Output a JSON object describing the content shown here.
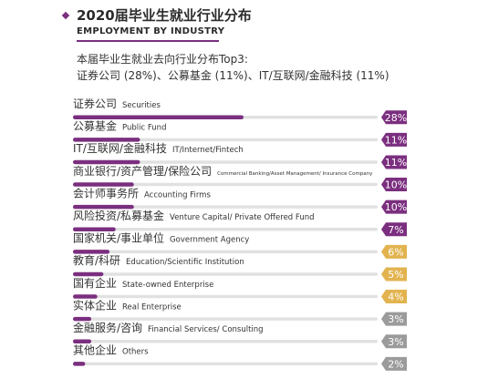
{
  "header": {
    "title": "2020届毕业生就业行业分布",
    "subtitle": "EMPLOYMENT BY INDUSTRY",
    "summary_line1": "本届毕业生就业去向行业分布Top3:",
    "summary_line2": "证券公司 (28%)、公募基金 (11%)、IT/互联网/金融科技 (11%)"
  },
  "colors": {
    "accent": "#7b2f7f",
    "track": "#e1e1e1",
    "badge_purple": "#7b2f7f",
    "badge_gold": "#e2b34f",
    "badge_grey": "#9b9b9b"
  },
  "chart_data": {
    "type": "bar",
    "title": "2020届毕业生就业行业分布",
    "orientation": "horizontal",
    "unit": "%",
    "xlim": [
      0,
      28
    ],
    "categories": [
      {
        "cn": "证券公司",
        "en": "Securities",
        "value": 28,
        "label": "28%",
        "badge": "purple"
      },
      {
        "cn": "公募基金",
        "en": "Public Fund",
        "value": 11,
        "label": "11%",
        "badge": "purple"
      },
      {
        "cn": "IT/互联网/金融科技",
        "en": "IT/Internet/Fintech",
        "value": 11,
        "label": "11%",
        "badge": "purple"
      },
      {
        "cn": "商业银行/资产管理/保险公司",
        "en": "Commercial Banking/Asset Management/ Insurance Company",
        "value": 10,
        "label": "10%",
        "badge": "purple",
        "small_en": true
      },
      {
        "cn": "会计师事务所",
        "en": "Accounting Firms",
        "value": 10,
        "label": "10%",
        "badge": "purple"
      },
      {
        "cn": "风险投资/私募基金",
        "en": "Venture Capital/ Private Offered Fund",
        "value": 7,
        "label": "7%",
        "badge": "purple"
      },
      {
        "cn": "国家机关/事业单位",
        "en": "Government Agency",
        "value": 6,
        "label": "6%",
        "badge": "gold"
      },
      {
        "cn": "教育/科研",
        "en": "Education/Scientific Institution",
        "value": 5,
        "label": "5%",
        "badge": "gold"
      },
      {
        "cn": "国有企业",
        "en": "State-owned Enterprise",
        "value": 4,
        "label": "4%",
        "badge": "gold"
      },
      {
        "cn": "实体企业",
        "en": "Real Enterprise",
        "value": 3,
        "label": "3%",
        "badge": "grey"
      },
      {
        "cn": "金融服务/咨询",
        "en": "Financial Services/ Consulting",
        "value": 3,
        "label": "3%",
        "badge": "grey"
      },
      {
        "cn": "其他企业",
        "en": "Others",
        "value": 2,
        "label": "2%",
        "badge": "grey"
      }
    ]
  }
}
